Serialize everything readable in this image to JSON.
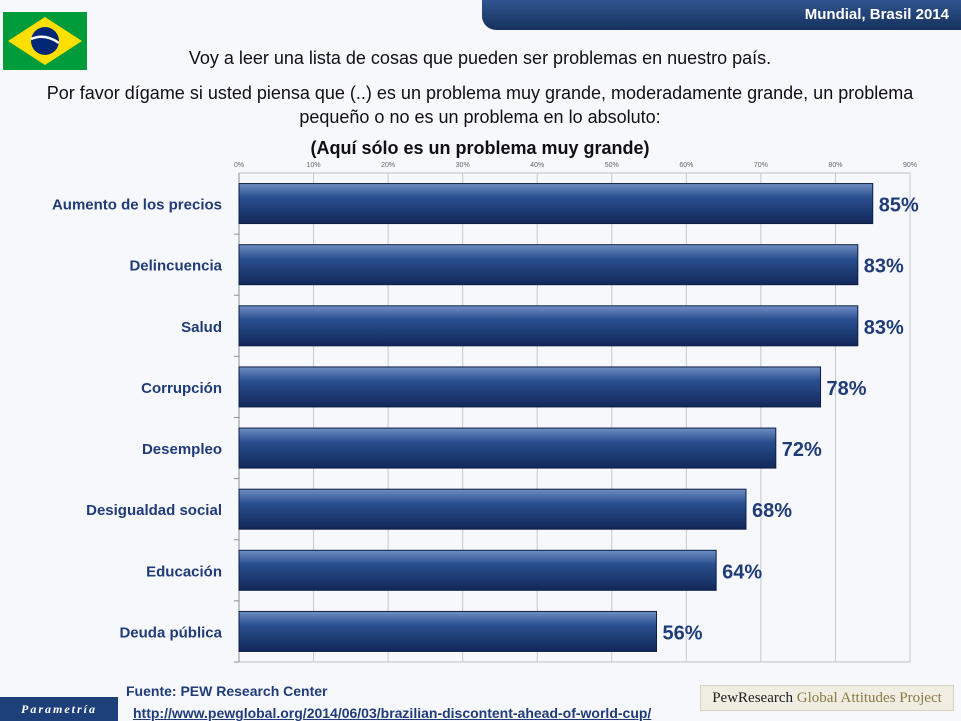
{
  "header": {
    "title": "Mundial, Brasil 2014"
  },
  "flag": {
    "icon": "brazil-flag-icon",
    "colors": {
      "green": "#009b3a",
      "yellow": "#fedf00",
      "blue": "#002776"
    }
  },
  "question": {
    "line1": "Voy a leer una lista de cosas que pueden ser problemas en nuestro país.",
    "line2": "Por favor dígame si usted piensa que (..) es un problema muy grande, moderadamente grande, un problema pequeño o no es un problema en lo absoluto:",
    "line3": "(Aquí sólo es un problema muy grande)"
  },
  "chart_data": {
    "type": "bar",
    "orientation": "horizontal",
    "categories": [
      "Aumento de los precios",
      "Delincuencia",
      "Salud",
      "Corrupción",
      "Desempleo",
      "Desigualdad social",
      "Educación",
      "Deuda pública"
    ],
    "values": [
      85,
      83,
      83,
      78,
      72,
      68,
      64,
      56
    ],
    "value_labels": [
      "85%",
      "83%",
      "83%",
      "78%",
      "72%",
      "68%",
      "64%",
      "56%"
    ],
    "xticks": [
      "0%",
      "10%",
      "20%",
      "30%",
      "40%",
      "50%",
      "60%",
      "70%",
      "80%",
      "90%"
    ],
    "xlim": [
      0,
      90
    ],
    "grid": true,
    "bar_color": "#1e3e78",
    "label_color": "#1f3b78"
  },
  "footer": {
    "source": "Fuente: PEW Research Center",
    "url": "http://www.pewglobal.org/2014/06/03/brazilian-discontent-ahead-of-world-cup/",
    "brand": "Parametría",
    "pew_a": "PewResearch",
    "pew_b": " Global Attitudes Project"
  }
}
